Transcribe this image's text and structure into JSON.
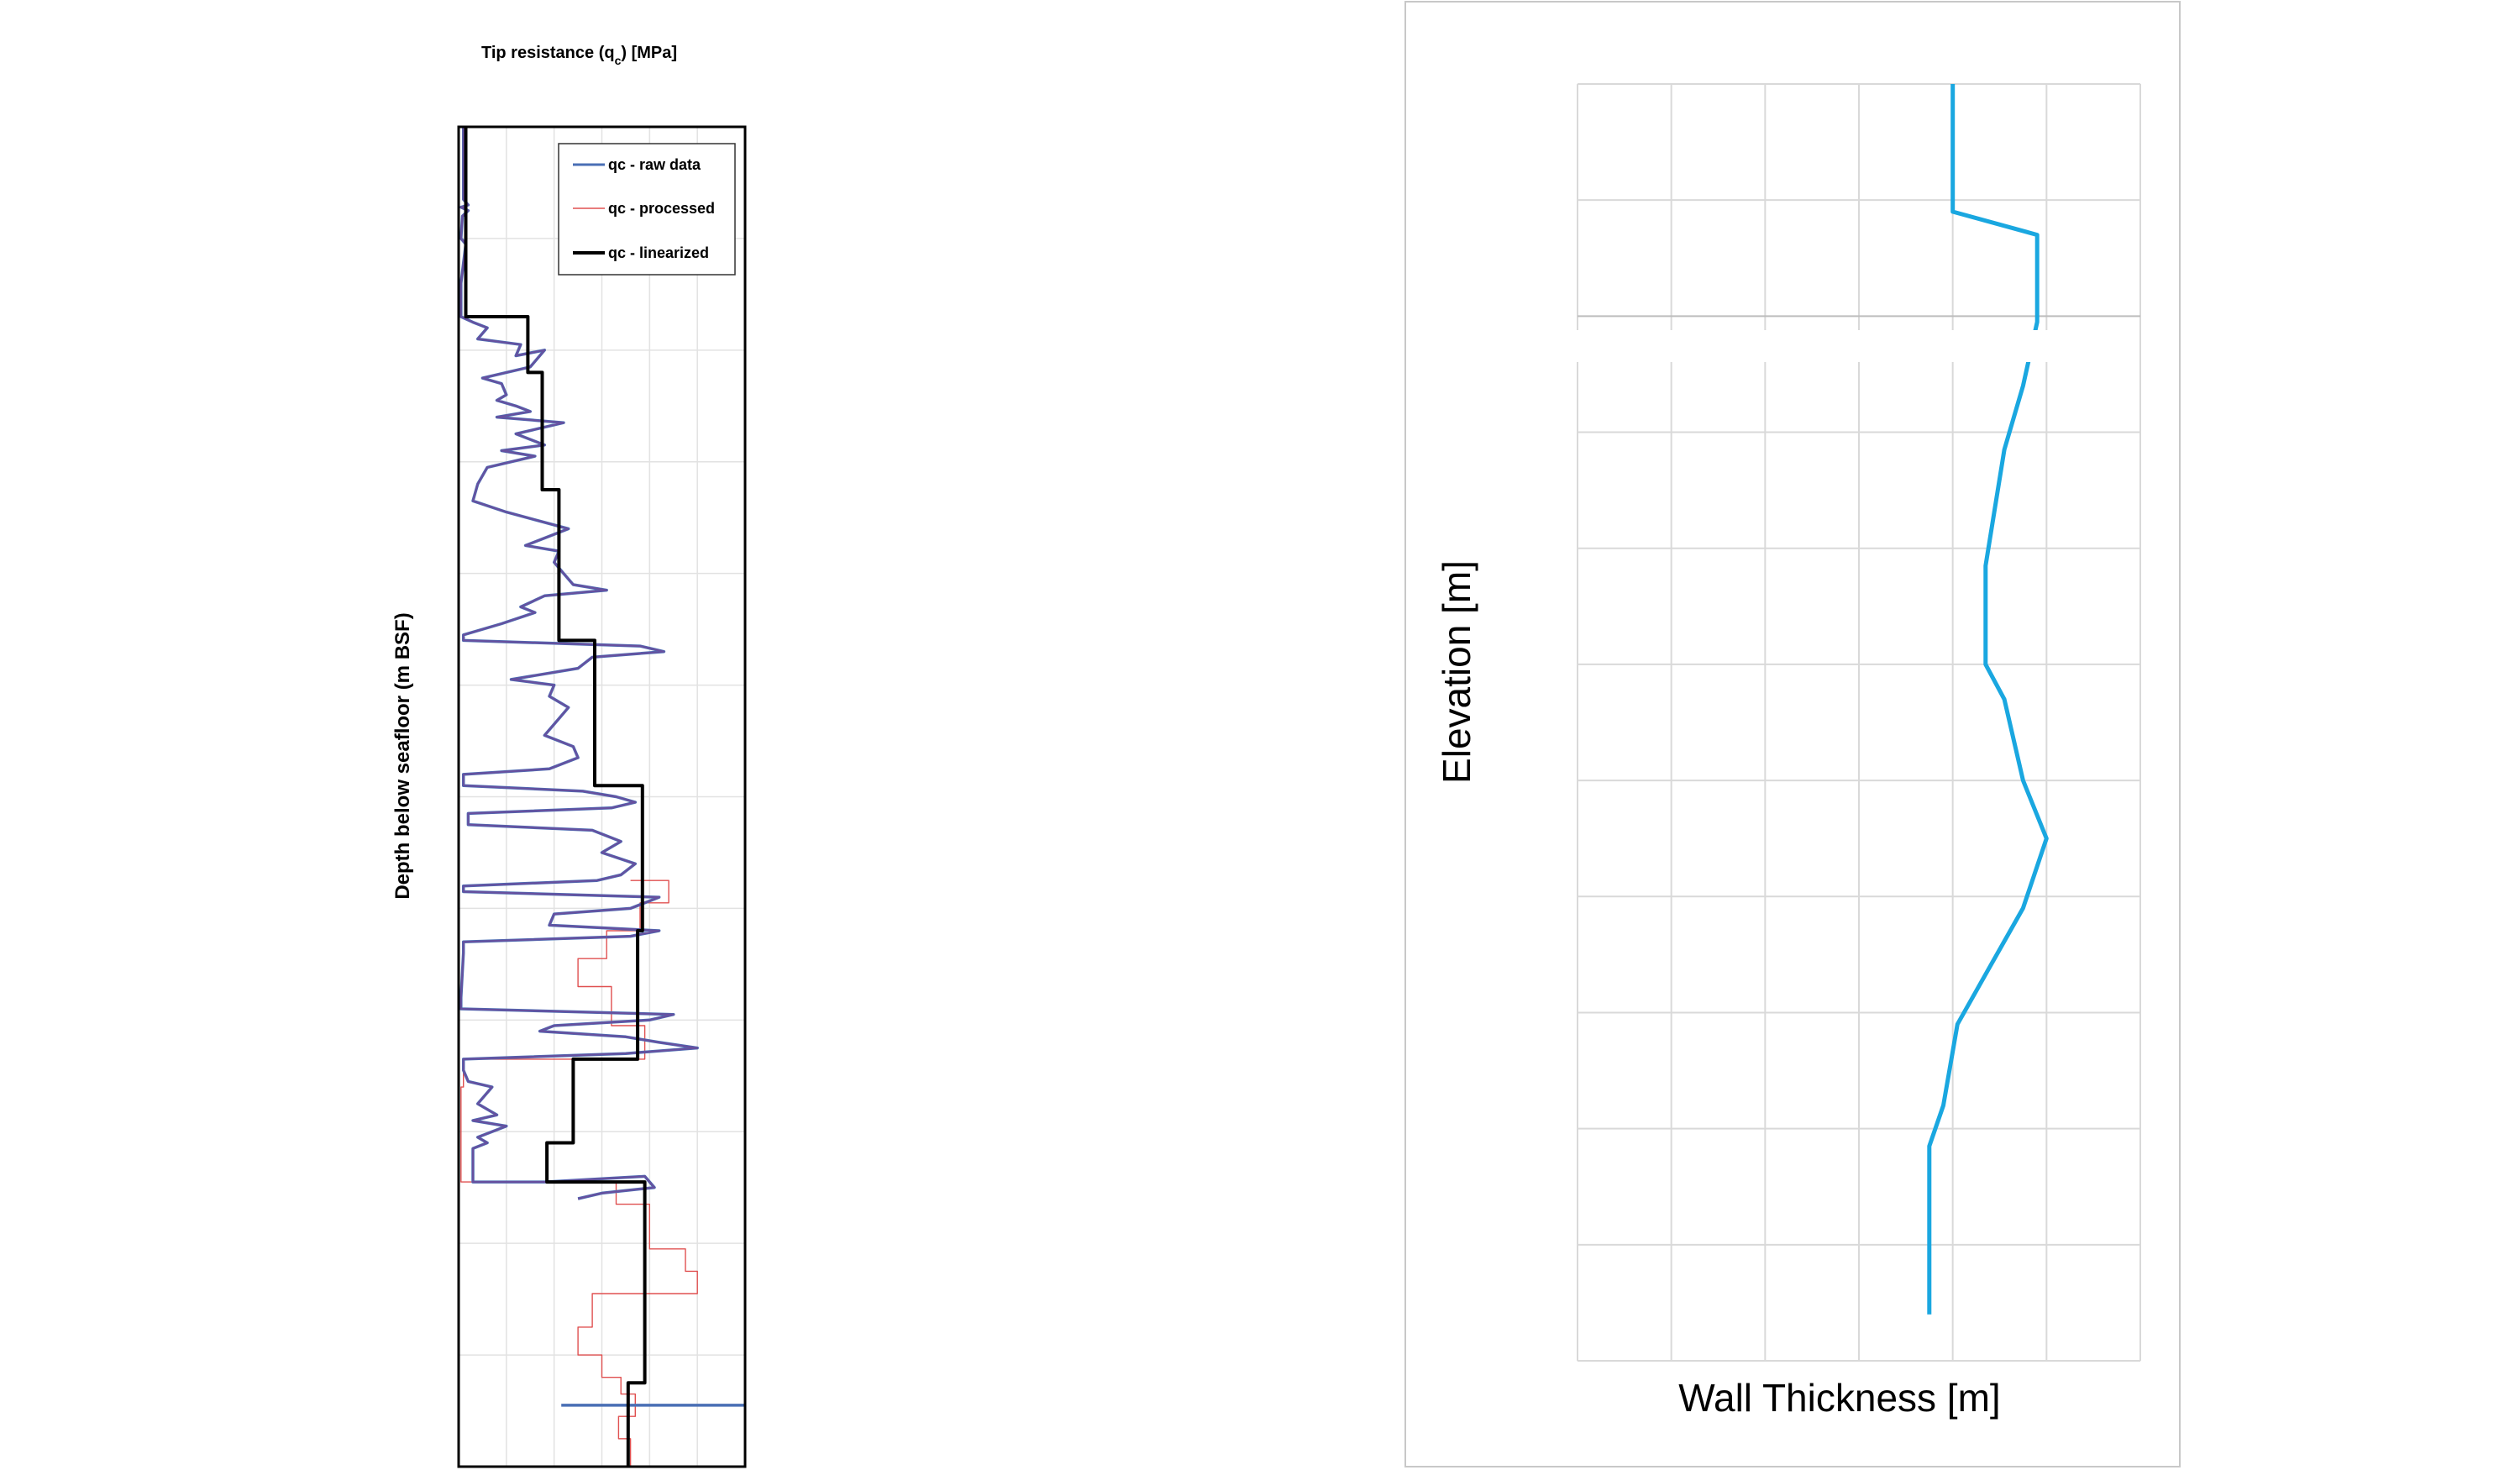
{
  "chart_data": [
    {
      "type": "line",
      "title": "Tip resistance (q_c) [MPa]",
      "title_main": "Tip resistance (q",
      "title_sub": "c",
      "title_tail": ") [MPa]",
      "xlabel": "",
      "ylabel": "Depth below seafloor (m BSF)",
      "xlim": [
        0,
        6
      ],
      "ylim": [
        12,
        0
      ],
      "grid": true,
      "legend_position": "top-right",
      "colors": {
        "raw": "#4a6fb5",
        "processed": "#e05050",
        "linearized": "#000000"
      },
      "legend": [
        {
          "label": "qc - raw data",
          "series": "raw"
        },
        {
          "label": "qc - processed",
          "series": "processed"
        },
        {
          "label": "qc - linearized",
          "series": "linearized"
        }
      ],
      "series": [
        {
          "key": "linearized",
          "points": [
            [
              0.15,
              0
            ],
            [
              0.15,
              1.7
            ],
            [
              1.45,
              1.7
            ],
            [
              1.45,
              2.2
            ],
            [
              1.75,
              2.2
            ],
            [
              1.75,
              3.25
            ],
            [
              2.1,
              3.25
            ],
            [
              2.1,
              4.6
            ],
            [
              2.85,
              4.6
            ],
            [
              2.85,
              5.9
            ],
            [
              3.85,
              5.9
            ],
            [
              3.85,
              7.2
            ],
            [
              3.75,
              7.2
            ],
            [
              3.75,
              8.35
            ],
            [
              2.4,
              8.35
            ],
            [
              2.4,
              9.1
            ],
            [
              1.85,
              9.1
            ],
            [
              1.85,
              9.45
            ],
            [
              3.9,
              9.45
            ],
            [
              3.9,
              11.25
            ],
            [
              3.55,
              11.25
            ],
            [
              3.55,
              12
            ]
          ]
        },
        {
          "key": "processed",
          "points": [
            [
              3.6,
              6.75
            ],
            [
              4.4,
              6.75
            ],
            [
              4.4,
              6.95
            ],
            [
              3.8,
              6.95
            ],
            [
              3.8,
              7.2
            ],
            [
              3.1,
              7.2
            ],
            [
              3.1,
              7.45
            ],
            [
              2.5,
              7.45
            ],
            [
              2.5,
              7.7
            ],
            [
              3.2,
              7.7
            ],
            [
              3.2,
              8.05
            ],
            [
              3.9,
              8.05
            ],
            [
              3.9,
              8.35
            ],
            [
              0.1,
              8.35
            ],
            [
              0.1,
              8.6
            ],
            [
              0.05,
              8.6
            ],
            [
              0.05,
              9.45
            ],
            [
              3.3,
              9.45
            ],
            [
              3.3,
              9.65
            ],
            [
              4.0,
              9.65
            ],
            [
              4.0,
              10.05
            ],
            [
              4.75,
              10.05
            ],
            [
              4.75,
              10.25
            ],
            [
              5.0,
              10.25
            ],
            [
              5.0,
              10.45
            ],
            [
              2.8,
              10.45
            ],
            [
              2.8,
              10.75
            ],
            [
              2.5,
              10.75
            ],
            [
              2.5,
              11.0
            ],
            [
              3.0,
              11.0
            ],
            [
              3.0,
              11.2
            ],
            [
              3.4,
              11.2
            ],
            [
              3.4,
              11.35
            ],
            [
              3.7,
              11.35
            ],
            [
              3.7,
              11.55
            ],
            [
              3.35,
              11.55
            ],
            [
              3.35,
              11.75
            ],
            [
              3.6,
              11.75
            ],
            [
              3.6,
              12.0
            ]
          ]
        },
        {
          "key": "raw",
          "points": [
            [
              0.1,
              0
            ],
            [
              0.1,
              0.65
            ],
            [
              0.2,
              0.7
            ],
            [
              0.05,
              0.72
            ],
            [
              0.2,
              0.75
            ],
            [
              0.08,
              0.8
            ],
            [
              0.05,
              1.0
            ],
            [
              0.15,
              1.05
            ],
            [
              0.05,
              1.4
            ],
            [
              0.05,
              1.7
            ],
            [
              0.3,
              1.75
            ],
            [
              0.6,
              1.8
            ],
            [
              0.4,
              1.9
            ],
            [
              1.3,
              1.95
            ],
            [
              1.2,
              2.05
            ],
            [
              1.8,
              2.0
            ],
            [
              1.5,
              2.15
            ],
            [
              0.5,
              2.25
            ],
            [
              0.9,
              2.3
            ],
            [
              1.0,
              2.4
            ],
            [
              0.8,
              2.45
            ],
            [
              1.2,
              2.5
            ],
            [
              1.5,
              2.55
            ],
            [
              0.8,
              2.6
            ],
            [
              2.2,
              2.65
            ],
            [
              1.2,
              2.75
            ],
            [
              1.8,
              2.85
            ],
            [
              0.9,
              2.9
            ],
            [
              1.6,
              2.95
            ],
            [
              0.6,
              3.05
            ],
            [
              0.4,
              3.2
            ],
            [
              0.3,
              3.35
            ],
            [
              1.0,
              3.45
            ],
            [
              2.3,
              3.6
            ],
            [
              1.4,
              3.75
            ],
            [
              2.1,
              3.8
            ],
            [
              2.0,
              3.9
            ],
            [
              2.2,
              4.0
            ],
            [
              2.4,
              4.1
            ],
            [
              3.1,
              4.15
            ],
            [
              1.8,
              4.2
            ],
            [
              1.3,
              4.3
            ],
            [
              1.6,
              4.35
            ],
            [
              0.9,
              4.45
            ],
            [
              0.1,
              4.55
            ],
            [
              0.1,
              4.6
            ],
            [
              3.8,
              4.65
            ],
            [
              4.3,
              4.7
            ],
            [
              2.8,
              4.75
            ],
            [
              2.5,
              4.85
            ],
            [
              1.1,
              4.95
            ],
            [
              2.0,
              5.0
            ],
            [
              1.9,
              5.1
            ],
            [
              2.3,
              5.2
            ],
            [
              2.1,
              5.3
            ],
            [
              1.8,
              5.45
            ],
            [
              2.4,
              5.55
            ],
            [
              2.5,
              5.65
            ],
            [
              1.9,
              5.75
            ],
            [
              0.1,
              5.8
            ],
            [
              0.1,
              5.9
            ],
            [
              2.6,
              5.95
            ],
            [
              3.3,
              6.0
            ],
            [
              3.7,
              6.05
            ],
            [
              3.2,
              6.1
            ],
            [
              0.2,
              6.15
            ],
            [
              0.2,
              6.25
            ],
            [
              2.8,
              6.3
            ],
            [
              3.4,
              6.4
            ],
            [
              3.0,
              6.5
            ],
            [
              3.7,
              6.6
            ],
            [
              3.4,
              6.7
            ],
            [
              2.9,
              6.75
            ],
            [
              0.1,
              6.8
            ],
            [
              0.1,
              6.85
            ],
            [
              4.2,
              6.9
            ],
            [
              3.6,
              7.0
            ],
            [
              2.0,
              7.05
            ],
            [
              1.9,
              7.15
            ],
            [
              4.2,
              7.2
            ],
            [
              3.6,
              7.25
            ],
            [
              0.1,
              7.3
            ],
            [
              0.1,
              7.4
            ],
            [
              0.05,
              7.8
            ],
            [
              0.05,
              7.9
            ],
            [
              4.5,
              7.95
            ],
            [
              4.0,
              8.0
            ],
            [
              2.0,
              8.05
            ],
            [
              1.7,
              8.1
            ],
            [
              3.5,
              8.15
            ],
            [
              4.2,
              8.2
            ],
            [
              5.0,
              8.25
            ],
            [
              3.5,
              8.3
            ],
            [
              0.1,
              8.35
            ],
            [
              0.1,
              8.45
            ],
            [
              0.2,
              8.55
            ],
            [
              0.7,
              8.6
            ],
            [
              0.4,
              8.75
            ],
            [
              0.8,
              8.85
            ],
            [
              0.3,
              8.9
            ],
            [
              1.0,
              8.95
            ],
            [
              0.4,
              9.05
            ],
            [
              0.6,
              9.1
            ],
            [
              0.3,
              9.15
            ],
            [
              0.3,
              9.45
            ],
            [
              1.8,
              9.45
            ],
            [
              3.9,
              9.4
            ],
            [
              4.1,
              9.5
            ],
            [
              3.0,
              9.55
            ],
            [
              2.5,
              9.6
            ]
          ]
        },
        {
          "key": "raw",
          "points": [
            [
              2.15,
              11.45
            ],
            [
              6.0,
              11.45
            ]
          ]
        }
      ]
    },
    {
      "type": "line",
      "title": "",
      "xlabel": "Wall Thickness [m]",
      "ylabel": "Elevation [m]",
      "xlim": [
        0,
        6
      ],
      "ylim": [
        0,
        11
      ],
      "grid": true,
      "color": "#1aa7e0",
      "series": [
        {
          "key": "wall",
          "points": [
            [
              4.0,
              11.0
            ],
            [
              4.0,
              9.9
            ],
            [
              4.9,
              9.7
            ],
            [
              4.9,
              8.95
            ],
            [
              4.75,
              8.4
            ],
            [
              4.55,
              7.85
            ],
            [
              4.35,
              6.85
            ],
            [
              4.35,
              6.0
            ],
            [
              4.55,
              5.7
            ],
            [
              4.75,
              5.0
            ],
            [
              5.0,
              4.5
            ],
            [
              4.75,
              3.9
            ],
            [
              4.4,
              3.4
            ],
            [
              4.05,
              2.9
            ],
            [
              3.9,
              2.2
            ],
            [
              3.75,
              1.85
            ],
            [
              3.75,
              0.4
            ]
          ]
        }
      ]
    }
  ]
}
